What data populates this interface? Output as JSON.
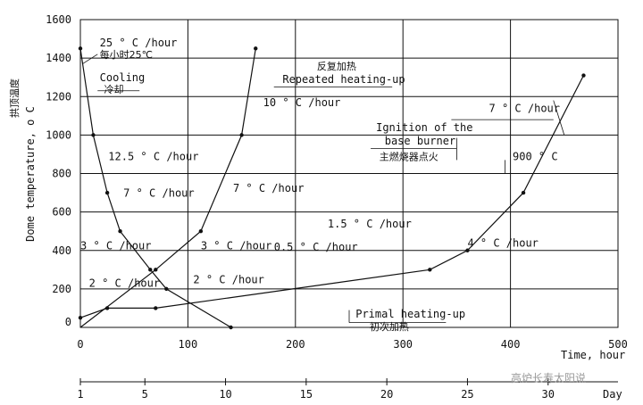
{
  "chart_data": {
    "type": "line",
    "ylabel": "Dome temperature,  o C",
    "ylabel_cn": "拱顶温度",
    "xlabel": "Time, hour",
    "xlabel2": "Day",
    "xlim": [
      0,
      500
    ],
    "ylim": [
      0,
      1600
    ],
    "xticks": [
      0,
      100,
      200,
      300,
      400,
      500
    ],
    "yticks": [
      0,
      200,
      400,
      600,
      800,
      1000,
      1200,
      1400,
      1600
    ],
    "day_ticks": [
      1,
      5,
      10,
      15,
      20,
      25,
      30
    ],
    "grid": true,
    "series": [
      {
        "points": [
          [
            0,
            1450
          ],
          [
            12,
            1000
          ],
          [
            25,
            700
          ],
          [
            37,
            500
          ],
          [
            65,
            300
          ],
          [
            80,
            200
          ],
          [
            140,
            0
          ]
        ]
      },
      {
        "points": [
          [
            0,
            0
          ],
          [
            70,
            300
          ],
          [
            112,
            500
          ],
          [
            150,
            1000
          ],
          [
            163,
            1450
          ]
        ]
      },
      {
        "points": [
          [
            0,
            50
          ],
          [
            25,
            100
          ],
          [
            70,
            100
          ],
          [
            325,
            300
          ],
          [
            360,
            400
          ],
          [
            412,
            700
          ],
          [
            468,
            1310
          ]
        ]
      }
    ],
    "annotations": [
      {
        "text": "25 ° C /hour",
        "x": 18,
        "y": 1460
      },
      {
        "text": "每小时25℃",
        "x": 18,
        "y": 1400,
        "cn": true
      },
      {
        "text": "Cooling",
        "x": 18,
        "y": 1280
      },
      {
        "text": "冷却",
        "x": 22,
        "y": 1220,
        "cn": true
      },
      {
        "text": "12.5 ° C /hour",
        "x": 26,
        "y": 870
      },
      {
        "text": "7 ° C /hour",
        "x": 40,
        "y": 680
      },
      {
        "text": "3 ° C /hour",
        "x": 0,
        "y": 405
      },
      {
        "text": "2 ° C /hour",
        "x": 8,
        "y": 210
      },
      {
        "text": "10 ° C /hour",
        "x": 170,
        "y": 1150
      },
      {
        "text": "7 ° C /hour",
        "x": 142,
        "y": 705
      },
      {
        "text": "3 ° C /hour",
        "x": 112,
        "y": 405
      },
      {
        "text": "2 ° C /hour",
        "x": 105,
        "y": 230
      },
      {
        "text": "反复加热",
        "x": 220,
        "y": 1340,
        "cn": true
      },
      {
        "text": "Repeated heating-up",
        "x": 188,
        "y": 1270
      },
      {
        "text": "Ignition of the",
        "x": 275,
        "y": 1020
      },
      {
        "text": "base burner",
        "x": 283,
        "y": 950
      },
      {
        "text": "主燃烧器点火",
        "x": 278,
        "y": 870,
        "cn": true
      },
      {
        "text": "900 ° C",
        "x": 402,
        "y": 870
      },
      {
        "text": "7 ° C /hour",
        "x": 380,
        "y": 1120
      },
      {
        "text": "1.5 ° C /hour",
        "x": 230,
        "y": 520
      },
      {
        "text": "0.5 ° C /hour",
        "x": 180,
        "y": 400
      },
      {
        "text": "4 ° C /hour",
        "x": 360,
        "y": 420
      },
      {
        "text": "Primal heating-up",
        "x": 256,
        "y": 50
      },
      {
        "text": "初次加热",
        "x": 269,
        "y": -15,
        "cn": true
      }
    ]
  },
  "watermark": "高炉长寿太阳说",
  "colors": {
    "line": "#111111",
    "grid": "#111111",
    "background": "#ffffff",
    "watermark": "#999999"
  }
}
